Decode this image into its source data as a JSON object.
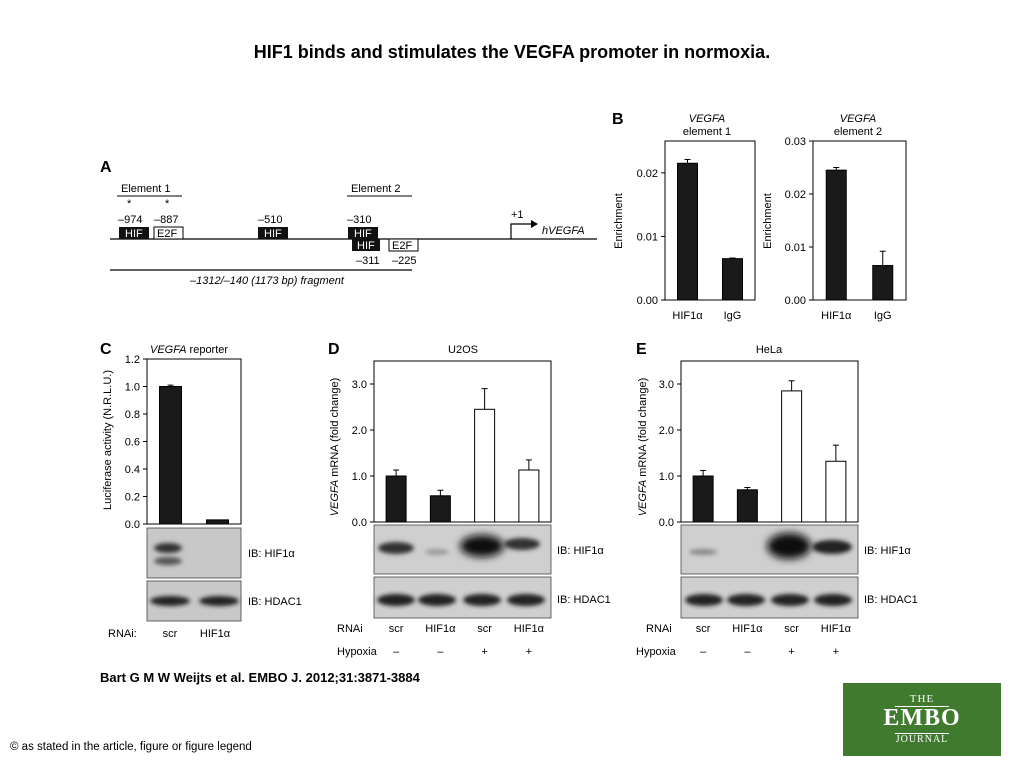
{
  "slide": {
    "title": "HIF1 binds and stimulates the VEGFA promoter in normoxia.",
    "citation": "Bart G M W Weijts et al. EMBO J. 2012;31:3871-3884",
    "copyright": "© as stated in the article, figure or figure legend",
    "logo": {
      "line1": "THE",
      "line2": "EMBO",
      "line3": "JOURNAL",
      "color": "#3f7a2e"
    }
  },
  "panelA": {
    "label": "A",
    "element1": "Element 1",
    "element2": "Element 2",
    "star1": "*",
    "star2": "*",
    "pos_974": "–974",
    "pos_887": "–887",
    "pos_510": "–510",
    "pos_310": "–310",
    "pos_311": "–311",
    "pos_225": "–225",
    "box_hif": "HIF",
    "box_e2f": "E2F",
    "tss": "+1",
    "gene": "hVEGFA",
    "fragment": "–1312/–140 (1173 bp) fragment"
  },
  "panelB": {
    "label": "B",
    "ylabel": "Enrichment",
    "charts": [
      {
        "gene": "VEGFA",
        "subtitle": "element 1",
        "yticks": [
          "0.00",
          "0.01",
          "0.02"
        ]
      },
      {
        "gene": "VEGFA",
        "subtitle": "element 2",
        "yticks": [
          "0.00",
          "0.01",
          "0.02",
          "0.03"
        ]
      }
    ],
    "xlabels": [
      "HIF1α",
      "IgG"
    ]
  },
  "panelC": {
    "label": "C",
    "title_gene": "VEGFA",
    "title_rest": " reporter",
    "ylabel": "Luciferase activity (N.R.L.U.)",
    "yticks": [
      "0.0",
      "0.2",
      "0.4",
      "0.6",
      "0.8",
      "1.0",
      "1.2"
    ],
    "ib1": "IB: HIF1α",
    "ib2": "IB: HDAC1",
    "rnai_label": "RNAi:",
    "xlabels": [
      "scr",
      "HIF1α"
    ]
  },
  "panelD": {
    "label": "D",
    "cell": "U2OS",
    "ylabel_gene": "VEGFA",
    "ylabel_rest": " mRNA (fold change)",
    "yticks": [
      "0.0",
      "1.0",
      "2.0",
      "3.0"
    ],
    "ib1": "IB: HIF1α",
    "ib2": "IB: HDAC1",
    "rnai_label": "RNAi",
    "hypoxia_label": "Hypoxia",
    "xlabels": [
      "scr",
      "HIF1α",
      "scr",
      "HIF1α"
    ],
    "hypoxia": [
      "–",
      "–",
      "+",
      "+"
    ]
  },
  "panelE": {
    "label": "E",
    "cell": "HeLa",
    "ylabel_gene": "VEGFA",
    "ylabel_rest": " mRNA (fold change)",
    "yticks": [
      "0.0",
      "1.0",
      "2.0",
      "3.0"
    ],
    "ib1": "IB: HIF1α",
    "ib2": "IB: HDAC1",
    "rnai_label": "RNAi",
    "hypoxia_label": "Hypoxia",
    "xlabels": [
      "scr",
      "HIF1α",
      "scr",
      "HIF1α"
    ],
    "hypoxia": [
      "–",
      "–",
      "+",
      "+"
    ]
  },
  "chart_data": [
    {
      "type": "bar",
      "title": "VEGFA element 1",
      "ylabel": "Enrichment",
      "categories": [
        "HIF1α",
        "IgG"
      ],
      "values": [
        0.0215,
        0.0065
      ],
      "errors": [
        0.0006,
        0.0001
      ],
      "ylim": [
        0,
        0.025
      ]
    },
    {
      "type": "bar",
      "title": "VEGFA element 2",
      "ylabel": "Enrichment",
      "categories": [
        "HIF1α",
        "IgG"
      ],
      "values": [
        0.0245,
        0.0065
      ],
      "errors": [
        0.0005,
        0.0027
      ],
      "ylim": [
        0,
        0.03
      ]
    },
    {
      "type": "bar",
      "title": "VEGFA reporter",
      "ylabel": "Luciferase activity (N.R.L.U.)",
      "categories": [
        "scr",
        "HIF1α"
      ],
      "values": [
        1.0,
        0.03
      ],
      "errors": [
        0.01,
        0.0
      ],
      "ylim": [
        0,
        1.2
      ]
    },
    {
      "type": "bar",
      "title": "U2OS",
      "ylabel": "VEGFA mRNA (fold change)",
      "categories": [
        "scr",
        "HIF1α",
        "scr",
        "HIF1α"
      ],
      "hypoxia": [
        "–",
        "–",
        "+",
        "+"
      ],
      "values": [
        1.0,
        0.57,
        2.45,
        1.13
      ],
      "errors": [
        0.13,
        0.12,
        0.45,
        0.22
      ],
      "colors": [
        "#1a1a1a",
        "#1a1a1a",
        "#ffffff",
        "#ffffff"
      ],
      "ylim": [
        0,
        3.5
      ]
    },
    {
      "type": "bar",
      "title": "HeLa",
      "ylabel": "VEGFA mRNA (fold change)",
      "categories": [
        "scr",
        "HIF1α",
        "scr",
        "HIF1α"
      ],
      "hypoxia": [
        "–",
        "–",
        "+",
        "+"
      ],
      "values": [
        1.0,
        0.7,
        2.85,
        1.32
      ],
      "errors": [
        0.12,
        0.05,
        0.22,
        0.35
      ],
      "colors": [
        "#1a1a1a",
        "#1a1a1a",
        "#ffffff",
        "#ffffff"
      ],
      "ylim": [
        0,
        3.5
      ]
    }
  ]
}
